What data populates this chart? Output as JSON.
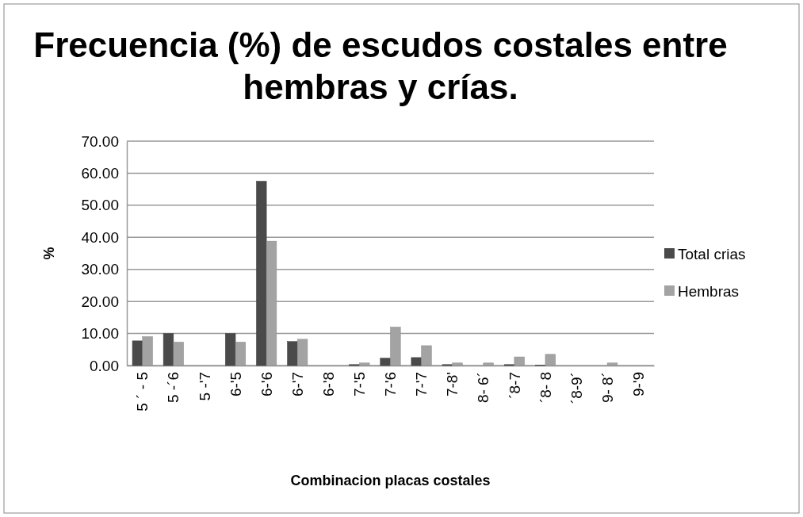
{
  "chart_data": {
    "type": "bar",
    "title": "Frecuencia (%) de escudos costales entre hembras y crías.",
    "xlabel": "Combinacion placas costales",
    "ylabel": "%",
    "categories": [
      "5 ´ - 5",
      "5 -´6",
      "5 -'7",
      "6-'5",
      "6-'6",
      "6-'7",
      "6-'8",
      "7-'5",
      "7-'6",
      "7-'7",
      "7-8'",
      "8- 6´",
      "´8-7",
      "´8- 8",
      "´8-9´",
      "9- 8´",
      "9-'9"
    ],
    "series": [
      {
        "name": "Total crias",
        "color": "#4a4a4a",
        "values": [
          7.7,
          10,
          0,
          10,
          57.5,
          7.5,
          0,
          0.3,
          2.3,
          2.5,
          0.3,
          0,
          0.3,
          0.1,
          0,
          0,
          0
        ]
      },
      {
        "name": "Hembras",
        "color": "#a3a3a3",
        "values": [
          9,
          7.3,
          0,
          7.3,
          38.8,
          8.2,
          0,
          0.8,
          12,
          6.2,
          0.8,
          0.8,
          2.7,
          3.5,
          0,
          0.8,
          0
        ]
      }
    ],
    "ylim": [
      0,
      70
    ],
    "yticks": [
      {
        "value": 0,
        "label": "0.00"
      },
      {
        "value": 10,
        "label": "10.00"
      },
      {
        "value": 20,
        "label": "20.00"
      },
      {
        "value": 30,
        "label": "30.00"
      },
      {
        "value": 40,
        "label": "40.00"
      },
      {
        "value": 50,
        "label": "50.00"
      },
      {
        "value": 60,
        "label": "60.00"
      },
      {
        "value": 70,
        "label": "70.00"
      }
    ],
    "grid": "y",
    "legend": "right"
  }
}
